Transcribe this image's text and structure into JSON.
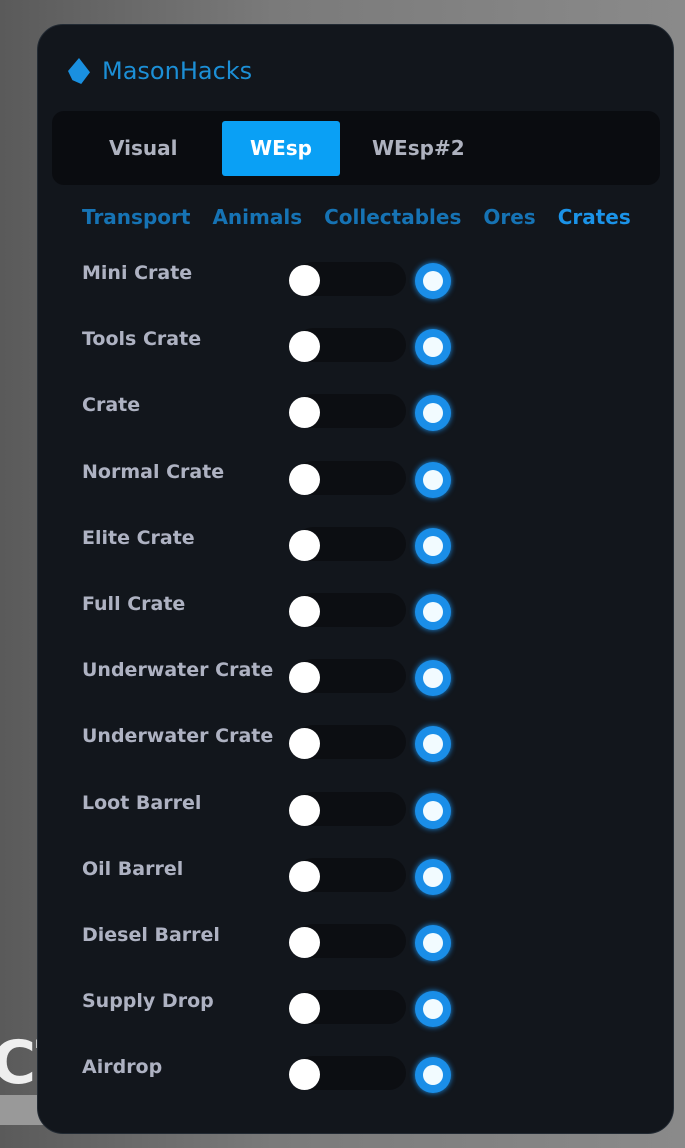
{
  "background_text": "CT",
  "app": {
    "title": "MasonHacks",
    "accent": "#0aa0f5"
  },
  "tabs": [
    {
      "label": "Visual",
      "active": false
    },
    {
      "label": "WEsp",
      "active": true
    },
    {
      "label": "WEsp#2",
      "active": false
    }
  ],
  "subtabs": [
    {
      "label": "Transport"
    },
    {
      "label": "Animals"
    },
    {
      "label": "Collectables"
    },
    {
      "label": "Ores"
    },
    {
      "label": "Crates",
      "active": true
    }
  ],
  "items": [
    {
      "label": "Mini Crate",
      "toggle": false,
      "radio": true
    },
    {
      "label": "Tools Crate",
      "toggle": false,
      "radio": true
    },
    {
      "label": "Crate",
      "toggle": false,
      "radio": true
    },
    {
      "label": "Normal Crate",
      "toggle": false,
      "radio": true
    },
    {
      "label": "Elite Crate",
      "toggle": false,
      "radio": true
    },
    {
      "label": "Full Crate",
      "toggle": false,
      "radio": true
    },
    {
      "label": "Underwater Crate",
      "toggle": false,
      "radio": true
    },
    {
      "label": "Underwater Crate",
      "toggle": false,
      "radio": true
    },
    {
      "label": "Loot Barrel",
      "toggle": false,
      "radio": true
    },
    {
      "label": "Oil Barrel",
      "toggle": false,
      "radio": true
    },
    {
      "label": "Diesel Barrel",
      "toggle": false,
      "radio": true
    },
    {
      "label": "Supply Drop",
      "toggle": false,
      "radio": true
    },
    {
      "label": "Airdrop",
      "toggle": false,
      "radio": true
    }
  ]
}
